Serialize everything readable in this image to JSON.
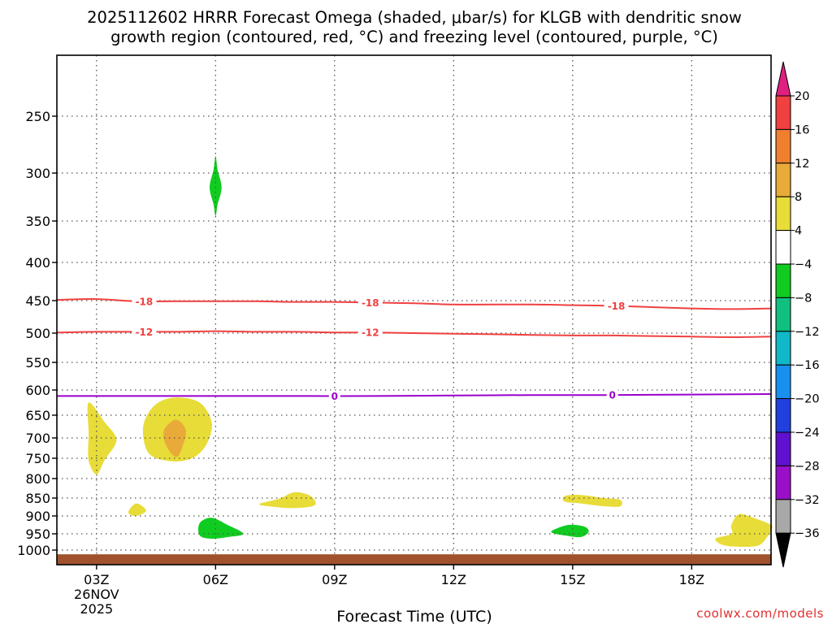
{
  "title_line1": "2025112602 HRRR Forecast Omega (shaded, μbar/s) for KLGB with dendritic snow",
  "title_line2": "growth region (contoured, red, °C) and freezing level (contoured, purple, °C)",
  "watermark": "coolwx.com/models",
  "chart_data": {
    "type": "contour",
    "xlabel": "Forecast Time (UTC)",
    "ylabel": "",
    "x_range_hours": [
      2,
      20
    ],
    "x_ticks": [
      {
        "hour": 3,
        "label": "03Z",
        "sub1": "26NOV",
        "sub2": "2025"
      },
      {
        "hour": 6,
        "label": "06Z"
      },
      {
        "hour": 9,
        "label": "09Z"
      },
      {
        "hour": 12,
        "label": "12Z"
      },
      {
        "hour": 15,
        "label": "15Z"
      },
      {
        "hour": 18,
        "label": "18Z"
      }
    ],
    "y_ticks_hPa": [
      250,
      300,
      350,
      400,
      450,
      500,
      550,
      600,
      650,
      700,
      750,
      800,
      850,
      900,
      950,
      1000
    ],
    "y_range_hPa": [
      200,
      1030
    ],
    "contours": [
      {
        "name": "dendritic -18",
        "color": "#f04040",
        "label": "-18",
        "points": [
          [
            2,
            449
          ],
          [
            3,
            448
          ],
          [
            4,
            451
          ],
          [
            5,
            451
          ],
          [
            6,
            451
          ],
          [
            7,
            451
          ],
          [
            8,
            452
          ],
          [
            9,
            452
          ],
          [
            10,
            453
          ],
          [
            11,
            454
          ],
          [
            12,
            456
          ],
          [
            13,
            456
          ],
          [
            14,
            456
          ],
          [
            15,
            457
          ],
          [
            16,
            458
          ],
          [
            17,
            460
          ],
          [
            18,
            462
          ],
          [
            19,
            463
          ],
          [
            20,
            462
          ]
        ],
        "label_hours": [
          4.2,
          9.9,
          16.1
        ]
      },
      {
        "name": "dendritic -12",
        "color": "#f04040",
        "label": "-12",
        "points": [
          [
            2,
            499
          ],
          [
            3,
            498
          ],
          [
            4,
            498
          ],
          [
            5,
            498
          ],
          [
            6,
            497
          ],
          [
            7,
            498
          ],
          [
            8,
            498
          ],
          [
            9,
            499
          ],
          [
            10,
            499
          ],
          [
            11,
            500
          ],
          [
            12,
            501
          ],
          [
            13,
            502
          ],
          [
            14,
            503
          ],
          [
            15,
            504
          ],
          [
            16,
            504
          ],
          [
            17,
            505
          ],
          [
            18,
            506
          ],
          [
            19,
            507
          ],
          [
            20,
            506
          ]
        ],
        "label_hours": [
          4.2,
          9.9
        ]
      },
      {
        "name": "freezing level 0",
        "color": "#9900cc",
        "label": "0",
        "points": [
          [
            2,
            612
          ],
          [
            4,
            612
          ],
          [
            6,
            612
          ],
          [
            8,
            612
          ],
          [
            10,
            612
          ],
          [
            12,
            611
          ],
          [
            14,
            610
          ],
          [
            16,
            610
          ],
          [
            18,
            609
          ],
          [
            20,
            608
          ]
        ],
        "label_hours": [
          9.0,
          16.0
        ]
      }
    ],
    "omega_areas": [
      {
        "value_range": [
          4,
          8
        ],
        "color": "#e8dc38",
        "points": [
          [
            2.8,
            625
          ],
          [
            3.2,
            665
          ],
          [
            3.5,
            705
          ],
          [
            3.2,
            755
          ],
          [
            3.0,
            790
          ],
          [
            2.8,
            755
          ],
          [
            2.8,
            690
          ]
        ]
      },
      {
        "value_range": [
          4,
          8
        ],
        "color": "#e8dc38",
        "points": [
          [
            5.0,
            615
          ],
          [
            5.6,
            625
          ],
          [
            5.9,
            665
          ],
          [
            5.8,
            710
          ],
          [
            5.5,
            745
          ],
          [
            5.0,
            758
          ],
          [
            4.4,
            745
          ],
          [
            4.2,
            710
          ],
          [
            4.2,
            665
          ],
          [
            4.5,
            628
          ]
        ]
      },
      {
        "value_range": [
          8,
          12
        ],
        "color": "#e8aa38",
        "points": [
          [
            5.0,
            660
          ],
          [
            5.25,
            683
          ],
          [
            5.15,
            725
          ],
          [
            5.0,
            747
          ],
          [
            4.75,
            718
          ],
          [
            4.7,
            683
          ]
        ]
      },
      {
        "value_range": [
          4,
          8
        ],
        "color": "#e8dc38",
        "points": [
          [
            3.8,
            890
          ],
          [
            4.0,
            865
          ],
          [
            4.25,
            885
          ],
          [
            4.0,
            900
          ]
        ]
      },
      {
        "value_range": [
          4,
          8
        ],
        "color": "#e8dc38",
        "points": [
          [
            7.1,
            867
          ],
          [
            7.6,
            852
          ],
          [
            8.0,
            835
          ],
          [
            8.4,
            845
          ],
          [
            8.5,
            870
          ],
          [
            8.0,
            878
          ],
          [
            7.5,
            875
          ]
        ]
      },
      {
        "value_range": [
          4,
          8
        ],
        "color": "#e8dc38",
        "points": [
          [
            14.8,
            845
          ],
          [
            15.2,
            842
          ],
          [
            15.8,
            850
          ],
          [
            16.2,
            855
          ],
          [
            16.2,
            873
          ],
          [
            15.8,
            873
          ],
          [
            15.2,
            865
          ],
          [
            14.8,
            860
          ]
        ]
      },
      {
        "value_range": [
          4,
          8
        ],
        "color": "#e8dc38",
        "points": [
          [
            18.6,
            965
          ],
          [
            19.0,
            950
          ],
          [
            19.0,
            925
          ],
          [
            19.2,
            895
          ],
          [
            19.6,
            907
          ],
          [
            20.0,
            925
          ],
          [
            20.0,
            940
          ],
          [
            19.9,
            960
          ],
          [
            19.7,
            985
          ],
          [
            19.3,
            990
          ],
          [
            18.8,
            985
          ]
        ]
      },
      {
        "value_range": [
          -8,
          -4
        ],
        "color": "#10cc20",
        "points": [
          [
            6.0,
            285
          ],
          [
            6.05,
            297
          ],
          [
            6.15,
            315
          ],
          [
            6.05,
            333
          ],
          [
            6.0,
            345
          ],
          [
            5.95,
            333
          ],
          [
            5.85,
            315
          ],
          [
            5.95,
            297
          ]
        ]
      },
      {
        "value_range": [
          -8,
          -4
        ],
        "color": "#10cc20",
        "points": [
          [
            5.6,
            920
          ],
          [
            5.9,
            905
          ],
          [
            6.3,
            925
          ],
          [
            6.7,
            950
          ],
          [
            6.3,
            960
          ],
          [
            5.9,
            965
          ],
          [
            5.6,
            955
          ]
        ]
      },
      {
        "value_range": [
          -8,
          -4
        ],
        "color": "#10cc20",
        "points": [
          [
            14.5,
            940
          ],
          [
            14.9,
            925
          ],
          [
            15.3,
            930
          ],
          [
            15.4,
            945
          ],
          [
            15.2,
            960
          ],
          [
            14.8,
            955
          ],
          [
            14.5,
            948
          ]
        ]
      }
    ],
    "terrain": {
      "color": "#a0522d",
      "surface_hPa": 1012
    },
    "colorbar": {
      "labels": [
        "20",
        "16",
        "12",
        "8",
        "4",
        "-4",
        "-8",
        "-12",
        "-16",
        "-20",
        "-24",
        "-28",
        "-32",
        "-36"
      ],
      "colors": [
        "#e02080",
        "#f04040",
        "#f08030",
        "#e8aa38",
        "#e8dc38",
        "#ffffff",
        "#10cc20",
        "#10c080",
        "#10b8c8",
        "#1890f0",
        "#2040e0",
        "#6010d0",
        "#9a10c8",
        "#a8a8a8",
        "#000000"
      ]
    }
  }
}
